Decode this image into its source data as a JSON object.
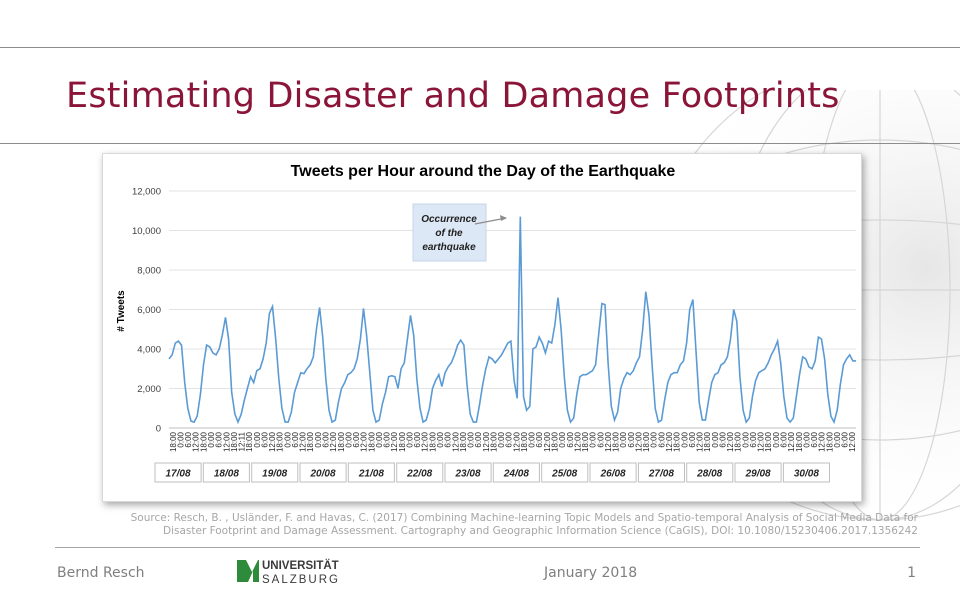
{
  "slide": {
    "title": "Estimating Disaster and Damage Footprints",
    "source_line1": "Source: Resch, B. , Usländer, F. and Havas, C. (2017) Combining Machine-learning Topic Models and Spatio-temporal Analysis of Social Media Data for",
    "source_line2": "Disaster Footprint and Damage Assessment. Cartography and Geographic Information Science (CaGIS), DOI: 10.1080/15230406.2017.1356242"
  },
  "footer": {
    "author": "Bernd Resch",
    "date": "January 2018",
    "page": "1",
    "logo_top": "UNIVERSITÄT",
    "logo_bottom": "SALZBURG"
  },
  "colors": {
    "title": "#8a1538",
    "line": "#5b9bd5",
    "logo_green": "#2e8b3c"
  },
  "chart_data": {
    "type": "line",
    "title": "Tweets per Hour around the Day of the Earthquake",
    "ylabel": "# Tweets",
    "ylim": [
      0,
      12000
    ],
    "yticks": [
      "0",
      "2,000",
      "4,000",
      "6,000",
      "8,000",
      "10,000",
      "12,000"
    ],
    "grid": true,
    "legend": "none",
    "x_time_labels": [
      "18:00",
      "0:00",
      "6:00",
      "12:00",
      "18:00",
      "0:00",
      "6:00",
      "12:00",
      "18:00",
      "12:11",
      "18:00",
      "0:00",
      "6:00",
      "12:00",
      "18:00",
      "0:00",
      "6:00",
      "12:00",
      "18:00",
      "0:00",
      "6:00",
      "12:00",
      "18:00",
      "0:00",
      "6:00",
      "12:00",
      "18:00",
      "0:00",
      "6:00",
      "12:00",
      "18:00",
      "0:00",
      "6:00",
      "12:00",
      "18:00",
      "0:00",
      "6:00",
      "12:00",
      "18:00",
      "0:00",
      "6:00",
      "12:00",
      "18:00",
      "0:00",
      "6:00",
      "12:00",
      "18:00",
      "0:00",
      "6:00",
      "12:00",
      "18:00",
      "0:00",
      "6:00",
      "12:00",
      "18:00",
      "0:00",
      "6:00",
      "12:00",
      "18:00",
      "0:00",
      "6:00",
      "12:00",
      "18:00",
      "0:00",
      "6:00",
      "12:00",
      "18:00",
      "0:00",
      "6:00",
      "12:00",
      "18:00",
      "0:00",
      "6:00",
      "12:00",
      "18:00",
      "0:00",
      "6:00",
      "12:00",
      "18:00",
      "0:00",
      "6:00",
      "12:00",
      "18:00",
      "0:00",
      "6:00",
      "12:00",
      "18:00",
      "0:00",
      "6:00",
      "12:00"
    ],
    "day_labels": [
      "17/08",
      "18/08",
      "19/08",
      "20/08",
      "21/08",
      "22/08",
      "23/08",
      "24/08",
      "25/08",
      "26/08",
      "27/08",
      "28/08",
      "29/08",
      "30/08"
    ],
    "annotation": {
      "lines": [
        "Occurrence",
        "of the",
        "earthquake"
      ]
    },
    "points": [
      [
        0,
        3500
      ],
      [
        0.5,
        3700
      ],
      [
        1,
        4300
      ],
      [
        1.5,
        4400
      ],
      [
        2,
        4200
      ],
      [
        2.5,
        2300
      ],
      [
        3,
        1000
      ],
      [
        3.5,
        350
      ],
      [
        4,
        300
      ],
      [
        4.5,
        600
      ],
      [
        5,
        1700
      ],
      [
        5.5,
        3200
      ],
      [
        6,
        4200
      ],
      [
        6.5,
        4100
      ],
      [
        7,
        3800
      ],
      [
        7.5,
        3700
      ],
      [
        8,
        4000
      ],
      [
        8.5,
        4700
      ],
      [
        9,
        5600
      ],
      [
        9.5,
        4500
      ],
      [
        10,
        1800
      ],
      [
        10.5,
        700
      ],
      [
        11,
        300
      ],
      [
        11.5,
        700
      ],
      [
        12,
        1400
      ],
      [
        12.5,
        2000
      ],
      [
        13,
        2600
      ],
      [
        13.5,
        2300
      ],
      [
        14,
        2900
      ],
      [
        14.5,
        3000
      ],
      [
        15,
        3500
      ],
      [
        15.5,
        4300
      ],
      [
        16,
        5800
      ],
      [
        16.5,
        6150
      ],
      [
        17,
        4500
      ],
      [
        17.5,
        2500
      ],
      [
        18,
        1000
      ],
      [
        18.5,
        300
      ],
      [
        19,
        300
      ],
      [
        19.5,
        800
      ],
      [
        20,
        1800
      ],
      [
        20.5,
        2300
      ],
      [
        21,
        2800
      ],
      [
        21.5,
        2750
      ],
      [
        22,
        3000
      ],
      [
        22.5,
        3200
      ],
      [
        23,
        3600
      ],
      [
        23.5,
        5000
      ],
      [
        24,
        6100
      ],
      [
        24.5,
        4600
      ],
      [
        25,
        2500
      ],
      [
        25.5,
        900
      ],
      [
        26,
        300
      ],
      [
        26.5,
        400
      ],
      [
        27,
        1300
      ],
      [
        27.5,
        2000
      ],
      [
        28,
        2300
      ],
      [
        28.5,
        2700
      ],
      [
        29,
        2800
      ],
      [
        29.5,
        3000
      ],
      [
        30,
        3500
      ],
      [
        30.5,
        4500
      ],
      [
        31,
        6050
      ],
      [
        31.5,
        4700
      ],
      [
        32,
        2800
      ],
      [
        32.5,
        900
      ],
      [
        33,
        300
      ],
      [
        33.5,
        400
      ],
      [
        34,
        1200
      ],
      [
        34.5,
        1800
      ],
      [
        35,
        2600
      ],
      [
        35.5,
        2650
      ],
      [
        36,
        2600
      ],
      [
        36.5,
        2000
      ],
      [
        37,
        3000
      ],
      [
        37.5,
        3300
      ],
      [
        38,
        4500
      ],
      [
        38.5,
        5700
      ],
      [
        39,
        4700
      ],
      [
        39.5,
        2500
      ],
      [
        40,
        1000
      ],
      [
        40.5,
        300
      ],
      [
        41,
        400
      ],
      [
        41.5,
        1000
      ],
      [
        42,
        2000
      ],
      [
        42.5,
        2400
      ],
      [
        43,
        2700
      ],
      [
        43.5,
        2100
      ],
      [
        44,
        2800
      ],
      [
        44.5,
        3100
      ],
      [
        45,
        3300
      ],
      [
        45.5,
        3700
      ],
      [
        46,
        4200
      ],
      [
        46.5,
        4450
      ],
      [
        47,
        4200
      ],
      [
        47.5,
        2200
      ],
      [
        48,
        700
      ],
      [
        48.5,
        300
      ],
      [
        49,
        300
      ],
      [
        49.5,
        1200
      ],
      [
        50,
        2200
      ],
      [
        50.5,
        3000
      ],
      [
        51,
        3600
      ],
      [
        51.5,
        3500
      ],
      [
        52,
        3300
      ],
      [
        52.5,
        3500
      ],
      [
        53,
        3700
      ],
      [
        53.5,
        4000
      ],
      [
        54,
        4300
      ],
      [
        54.5,
        4400
      ],
      [
        55,
        2400
      ],
      [
        55.5,
        1500
      ],
      [
        56,
        10700
      ],
      [
        56.5,
        1600
      ],
      [
        57,
        900
      ],
      [
        57.5,
        1100
      ],
      [
        58,
        4000
      ],
      [
        58.5,
        4100
      ],
      [
        59,
        4600
      ],
      [
        59.5,
        4300
      ],
      [
        60,
        3800
      ],
      [
        60.5,
        4400
      ],
      [
        61,
        4300
      ],
      [
        61.5,
        5200
      ],
      [
        62,
        6600
      ],
      [
        62.5,
        5000
      ],
      [
        63,
        2600
      ],
      [
        63.5,
        900
      ],
      [
        64,
        300
      ],
      [
        64.5,
        500
      ],
      [
        65,
        1700
      ],
      [
        65.5,
        2600
      ],
      [
        66,
        2700
      ],
      [
        66.5,
        2700
      ],
      [
        67,
        2800
      ],
      [
        67.5,
        2900
      ],
      [
        68,
        3200
      ],
      [
        68.5,
        4800
      ],
      [
        69,
        6300
      ],
      [
        69.5,
        6250
      ],
      [
        70,
        3200
      ],
      [
        70.5,
        1100
      ],
      [
        71,
        400
      ],
      [
        71.5,
        800
      ],
      [
        72,
        2000
      ],
      [
        72.5,
        2500
      ],
      [
        73,
        2800
      ],
      [
        73.5,
        2700
      ],
      [
        74,
        2900
      ],
      [
        74.5,
        3300
      ],
      [
        75,
        3600
      ],
      [
        75.5,
        5000
      ],
      [
        76,
        6900
      ],
      [
        76.5,
        5700
      ],
      [
        77,
        3200
      ],
      [
        77.5,
        1000
      ],
      [
        78,
        300
      ],
      [
        78.5,
        400
      ],
      [
        79,
        1400
      ],
      [
        79.5,
        2300
      ],
      [
        80,
        2700
      ],
      [
        80.5,
        2800
      ],
      [
        81,
        2800
      ],
      [
        81.5,
        3200
      ],
      [
        82,
        3400
      ],
      [
        82.5,
        4300
      ],
      [
        83,
        6000
      ],
      [
        83.5,
        6500
      ],
      [
        84,
        3900
      ],
      [
        84.5,
        1300
      ],
      [
        85,
        400
      ],
      [
        85.5,
        400
      ],
      [
        86,
        1400
      ],
      [
        86.5,
        2300
      ],
      [
        87,
        2700
      ],
      [
        87.5,
        2800
      ],
      [
        88,
        3200
      ],
      [
        88.5,
        3300
      ],
      [
        89,
        3600
      ],
      [
        89.5,
        4500
      ],
      [
        90,
        6000
      ],
      [
        90.5,
        5400
      ],
      [
        91,
        2600
      ],
      [
        91.5,
        900
      ],
      [
        92,
        300
      ],
      [
        92.5,
        500
      ],
      [
        93,
        1600
      ],
      [
        93.5,
        2400
      ],
      [
        94,
        2800
      ],
      [
        94.5,
        2900
      ],
      [
        95,
        3000
      ],
      [
        95.5,
        3300
      ],
      [
        96,
        3700
      ],
      [
        96.5,
        4000
      ],
      [
        97,
        4400
      ],
      [
        97.5,
        3300
      ],
      [
        98,
        1600
      ],
      [
        98.5,
        500
      ],
      [
        99,
        300
      ],
      [
        99.5,
        500
      ],
      [
        100,
        1600
      ],
      [
        100.5,
        2700
      ],
      [
        101,
        3600
      ],
      [
        101.5,
        3500
      ],
      [
        102,
        3100
      ],
      [
        102.5,
        3000
      ],
      [
        103,
        3400
      ],
      [
        103.5,
        4600
      ],
      [
        104,
        4500
      ],
      [
        104.5,
        3500
      ],
      [
        105,
        1700
      ],
      [
        105.5,
        600
      ],
      [
        106,
        300
      ],
      [
        106.5,
        900
      ],
      [
        107,
        2200
      ],
      [
        107.5,
        3200
      ],
      [
        108,
        3500
      ],
      [
        108.5,
        3700
      ],
      [
        109,
        3400
      ],
      [
        109.5,
        3400
      ]
    ]
  }
}
